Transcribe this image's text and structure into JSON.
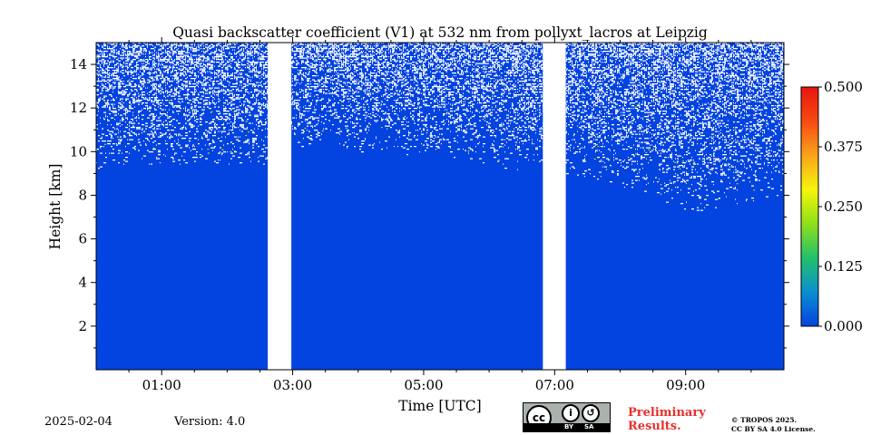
{
  "chart_data": {
    "type": "heatmap",
    "title": "Quasi backscatter coefficient (V1) at 532 nm from pollyxt_lacros at Leipzig",
    "xlabel": "Time [UTC]",
    "ylabel": "Height [km]",
    "xlim_hours": [
      0,
      10.5
    ],
    "ylim": [
      0,
      15
    ],
    "x_ticks": [
      {
        "value": 1,
        "label": "01:00"
      },
      {
        "value": 3,
        "label": "03:00"
      },
      {
        "value": 5,
        "label": "05:00"
      },
      {
        "value": 7,
        "label": "07:00"
      },
      {
        "value": 9,
        "label": "09:00"
      }
    ],
    "y_ticks": [
      {
        "value": 2,
        "label": "2"
      },
      {
        "value": 4,
        "label": "4"
      },
      {
        "value": 6,
        "label": "6"
      },
      {
        "value": 8,
        "label": "8"
      },
      {
        "value": 10,
        "label": "10"
      },
      {
        "value": 12,
        "label": "12"
      },
      {
        "value": 14,
        "label": "14"
      }
    ],
    "data_gaps_hours": [
      [
        2.62,
        2.98
      ],
      [
        6.82,
        7.17
      ]
    ],
    "background_value": 0.0,
    "noise_onset_height_km": [
      {
        "time": 0,
        "height": 9.2
      },
      {
        "time": 2.6,
        "height": 9.4
      },
      {
        "time": 3.0,
        "height": 10.2
      },
      {
        "time": 5.0,
        "height": 9.8
      },
      {
        "time": 6.8,
        "height": 9.0
      },
      {
        "time": 7.2,
        "height": 9.0
      },
      {
        "time": 8.5,
        "height": 8.0
      },
      {
        "time": 9.0,
        "height": 7.2
      },
      {
        "time": 10.5,
        "height": 8.0
      }
    ],
    "colorbar": {
      "min": 0.0,
      "max": 0.5,
      "ticks": [
        {
          "value": 0.0,
          "label": "0.000"
        },
        {
          "value": 0.125,
          "label": "0.125"
        },
        {
          "value": 0.25,
          "label": "0.250"
        },
        {
          "value": 0.375,
          "label": "0.375"
        },
        {
          "value": 0.5,
          "label": "0.500"
        }
      ],
      "colormap": [
        "#0343df",
        "#0a8fd0",
        "#22c06a",
        "#8ee01a",
        "#f5f50a",
        "#f9a41a",
        "#f74a12",
        "#e8150f"
      ]
    }
  },
  "footer": {
    "date": "2025-02-04",
    "version": "Version: 4.0",
    "preliminary_line1": "Preliminary",
    "preliminary_line2": "Results.",
    "copyright_line1": "© TROPOS 2025.",
    "copyright_line2": "CC BY SA 4.0 License.",
    "cc_badge": {
      "by": "BY",
      "sa": "SA",
      "icon": "creative-commons-icon"
    }
  },
  "colors": {
    "background_blue": "#0343df"
  }
}
